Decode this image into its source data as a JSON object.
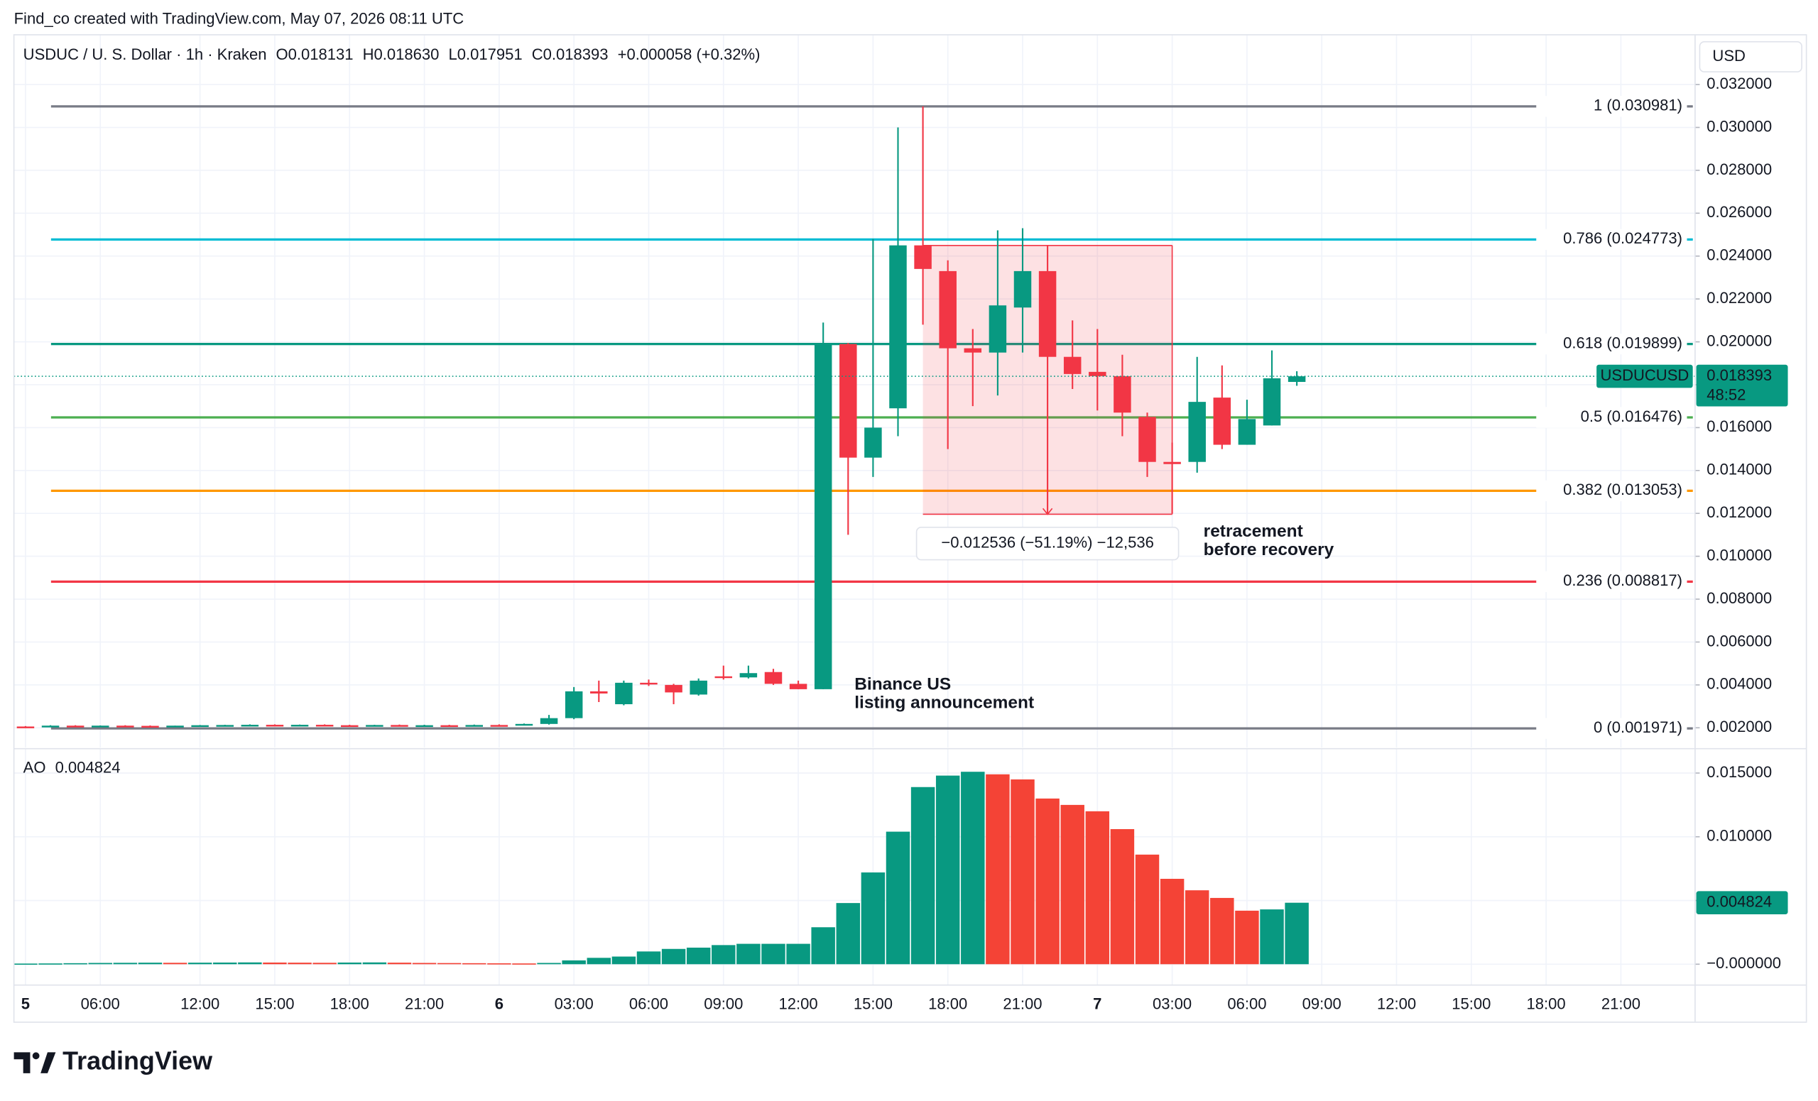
{
  "header": {
    "credit": "Find_co created with TradingView.com, May 07, 2026 08:11 UTC",
    "logo": "TradingView"
  },
  "chart_data": [
    {
      "type": "candlestick",
      "title": "USDUC / U. S. Dollar · 1h · Kraken",
      "ohlc_legend": [
        {
          "key": "O",
          "value": "0.018131"
        },
        {
          "key": "H",
          "value": "0.018630"
        },
        {
          "key": "L",
          "value": "0.017951"
        },
        {
          "key": "C",
          "value": "0.018393"
        }
      ],
      "change": "+0.000058 (+0.32%)",
      "currency": "USD",
      "symbol_tag": "USDUCUSD",
      "countdown": "48:52",
      "categories": [
        "5",
        null,
        null,
        "06:00",
        null,
        null,
        null,
        "12:00",
        null,
        null,
        "15:00",
        null,
        null,
        "18:00",
        null,
        null,
        "21:00",
        null,
        null,
        "6",
        null,
        null,
        "03:00",
        null,
        null,
        "06:00",
        null,
        null,
        "09:00",
        null,
        null,
        "12:00",
        null,
        null,
        "15:00",
        null,
        null,
        "18:00",
        null,
        null,
        "21:00",
        null,
        null,
        "7",
        null,
        null,
        "03:00",
        null,
        null,
        "06:00",
        null,
        null,
        "09:00",
        null,
        null,
        "12:00",
        null,
        null,
        "15:00",
        null,
        null,
        "18:00",
        null,
        null,
        "21:00",
        null,
        null
      ],
      "open": [
        0.00206,
        0.00204,
        0.0021,
        0.00209,
        0.0021,
        0.00209,
        0.00208,
        0.0021,
        0.00212,
        0.00213,
        0.00214,
        0.00212,
        0.00214,
        0.00212,
        0.00211,
        0.00213,
        0.00211,
        0.00212,
        0.00211,
        0.00213,
        0.00212,
        0.00218,
        0.00245,
        0.0037,
        0.0031,
        0.0041,
        0.004,
        0.00355,
        0.0044,
        0.00435,
        0.0046,
        0.00405,
        0.0038,
        0.0199,
        0.0146,
        0.0169,
        0.0245,
        0.0233,
        0.0197,
        0.0195,
        0.0216,
        0.0233,
        0.0193,
        0.0186,
        0.0184,
        0.0165,
        0.0144,
        0.0144,
        0.0174,
        0.0152,
        0.0161,
        0.018131,
        null,
        null,
        null,
        null,
        null,
        null,
        null,
        null,
        null,
        null,
        null,
        null,
        null,
        null,
        null
      ],
      "high": [
        0.00208,
        0.00212,
        0.00212,
        0.00211,
        0.00212,
        0.00211,
        0.0021,
        0.00213,
        0.00214,
        0.00216,
        0.00216,
        0.00215,
        0.00216,
        0.00214,
        0.00214,
        0.00215,
        0.00214,
        0.00214,
        0.00215,
        0.00216,
        0.0022,
        0.0026,
        0.0039,
        0.0042,
        0.0042,
        0.00425,
        0.00405,
        0.0043,
        0.0049,
        0.0049,
        0.00475,
        0.0042,
        0.0209,
        0.01995,
        0.0248,
        0.03,
        0.030981,
        0.0238,
        0.0206,
        0.0252,
        0.0253,
        0.0245,
        0.021,
        0.0206,
        0.0194,
        0.0167,
        0.0153,
        0.0193,
        0.0189,
        0.0173,
        0.0196,
        0.01863,
        null,
        null,
        null,
        null,
        null,
        null,
        null,
        null,
        null,
        null,
        null,
        null,
        null,
        null,
        null
      ],
      "low": [
        0.00203,
        0.00203,
        0.00207,
        0.00207,
        0.00208,
        0.00207,
        0.00206,
        0.00208,
        0.0021,
        0.00211,
        0.00211,
        0.0021,
        0.00211,
        0.0021,
        0.00209,
        0.0021,
        0.00209,
        0.0021,
        0.00209,
        0.0021,
        0.00211,
        0.00215,
        0.0024,
        0.0032,
        0.00305,
        0.00395,
        0.0031,
        0.0035,
        0.00425,
        0.0043,
        0.004,
        0.0038,
        0.0038,
        0.011,
        0.0137,
        0.0156,
        0.0208,
        0.015,
        0.017,
        0.0175,
        0.0195,
        0.012,
        0.0178,
        0.0168,
        0.0156,
        0.0137,
        0.012,
        0.0139,
        0.015,
        0.0152,
        0.0161,
        0.017951,
        null,
        null,
        null,
        null,
        null,
        null,
        null,
        null,
        null,
        null,
        null,
        null,
        null,
        null,
        null
      ],
      "close": [
        0.00204,
        0.0021,
        0.00209,
        0.0021,
        0.00209,
        0.00208,
        0.0021,
        0.00212,
        0.00213,
        0.00214,
        0.00212,
        0.00214,
        0.00212,
        0.00211,
        0.00213,
        0.00211,
        0.00212,
        0.00211,
        0.00213,
        0.00212,
        0.00218,
        0.00245,
        0.0037,
        0.0036,
        0.0041,
        0.00405,
        0.00365,
        0.0042,
        0.00435,
        0.00455,
        0.00405,
        0.0038,
        0.0199,
        0.0146,
        0.016,
        0.0245,
        0.0234,
        0.0197,
        0.0195,
        0.0217,
        0.0233,
        0.0193,
        0.0185,
        0.0184,
        0.0167,
        0.0144,
        0.0143,
        0.0172,
        0.0152,
        0.0164,
        0.0183,
        0.018393,
        null,
        null,
        null,
        null,
        null,
        null,
        null,
        null,
        null,
        null,
        null,
        null,
        null,
        null,
        null
      ],
      "up_color": "#089981",
      "down_color": "#f23645",
      "ylim": [
        0.00108,
        0.0327
      ],
      "yticks": [
        {
          "value": 0.002,
          "label": "0.002000"
        },
        {
          "value": 0.004,
          "label": "0.004000"
        },
        {
          "value": 0.006,
          "label": "0.006000"
        },
        {
          "value": 0.008,
          "label": "0.008000"
        },
        {
          "value": 0.01,
          "label": "0.010000"
        },
        {
          "value": 0.012,
          "label": "0.012000"
        },
        {
          "value": 0.014,
          "label": "0.014000"
        },
        {
          "value": 0.016,
          "label": "0.016000"
        },
        {
          "value": 0.018,
          "label": "0.018000"
        },
        {
          "value": 0.02,
          "label": "0.020000"
        },
        {
          "value": 0.022,
          "label": "0.022000"
        },
        {
          "value": 0.024,
          "label": "0.024000"
        },
        {
          "value": 0.026,
          "label": "0.026000"
        },
        {
          "value": 0.028,
          "label": "0.028000"
        },
        {
          "value": 0.03,
          "label": "0.030000"
        },
        {
          "value": 0.032,
          "label": "0.032000"
        }
      ],
      "grid": true,
      "fib_levels": [
        {
          "label": "1 (0.030981)",
          "value": 0.030981,
          "color": "#787b86"
        },
        {
          "label": "0.786 (0.024773)",
          "value": 0.024773,
          "color": "#00bcd4"
        },
        {
          "label": "0.618 (0.019899)",
          "value": 0.019899,
          "color": "#089981"
        },
        {
          "label": "0.5 (0.016476)",
          "value": 0.016476,
          "color": "#4caf50"
        },
        {
          "label": "0.382 (0.013053)",
          "value": 0.013053,
          "color": "#ff9800"
        },
        {
          "label": "0.236 (0.008817)",
          "value": 0.008817,
          "color": "#f23645"
        },
        {
          "label": "0 (0.001971)",
          "value": 0.001971,
          "color": "#787b86"
        }
      ],
      "measurement": {
        "label": "−0.012536 (−51.19%) −12,536",
        "from": 0.024496,
        "to": 0.01196,
        "color": "#f23645"
      },
      "annotations": [
        {
          "lines": [
            "Binance US",
            "listing announcement"
          ]
        },
        {
          "lines": [
            "retracement",
            "before recovery"
          ]
        }
      ]
    },
    {
      "type": "bar",
      "title": "AO",
      "values": [
        5e-05,
        6e-05,
        8e-05,
        0.0001,
        0.00011,
        0.00012,
        0.00011,
        0.00012,
        0.00013,
        0.00014,
        0.00013,
        0.00012,
        0.00011,
        0.00013,
        0.00014,
        0.00012,
        0.0001,
        9e-05,
        8e-05,
        7e-05,
        6e-05,
        0.0001,
        0.0003,
        0.0005,
        0.0006,
        0.001,
        0.0012,
        0.0013,
        0.0015,
        0.0016,
        0.0016,
        0.0016,
        0.0029,
        0.0048,
        0.0072,
        0.0104,
        0.0139,
        0.0148,
        0.0151,
        0.0149,
        0.0145,
        0.013,
        0.0125,
        0.012,
        0.0106,
        0.0086,
        0.0067,
        0.0058,
        0.0052,
        0.0042,
        0.0043,
        0.004824,
        null,
        null,
        null,
        null,
        null,
        null,
        null,
        null,
        null,
        null,
        null,
        null,
        null,
        null,
        null
      ],
      "up_color": "#089981",
      "down_color": "#f44336",
      "ylim": [
        -0.00164,
        0.01673
      ],
      "yticks": [
        {
          "value": 0,
          "label": "−0.000000"
        },
        {
          "value": 0.005,
          "label": "0.005000"
        },
        {
          "value": 0.01,
          "label": "0.010000"
        },
        {
          "value": 0.015,
          "label": "0.015000"
        }
      ],
      "grid": true
    }
  ]
}
